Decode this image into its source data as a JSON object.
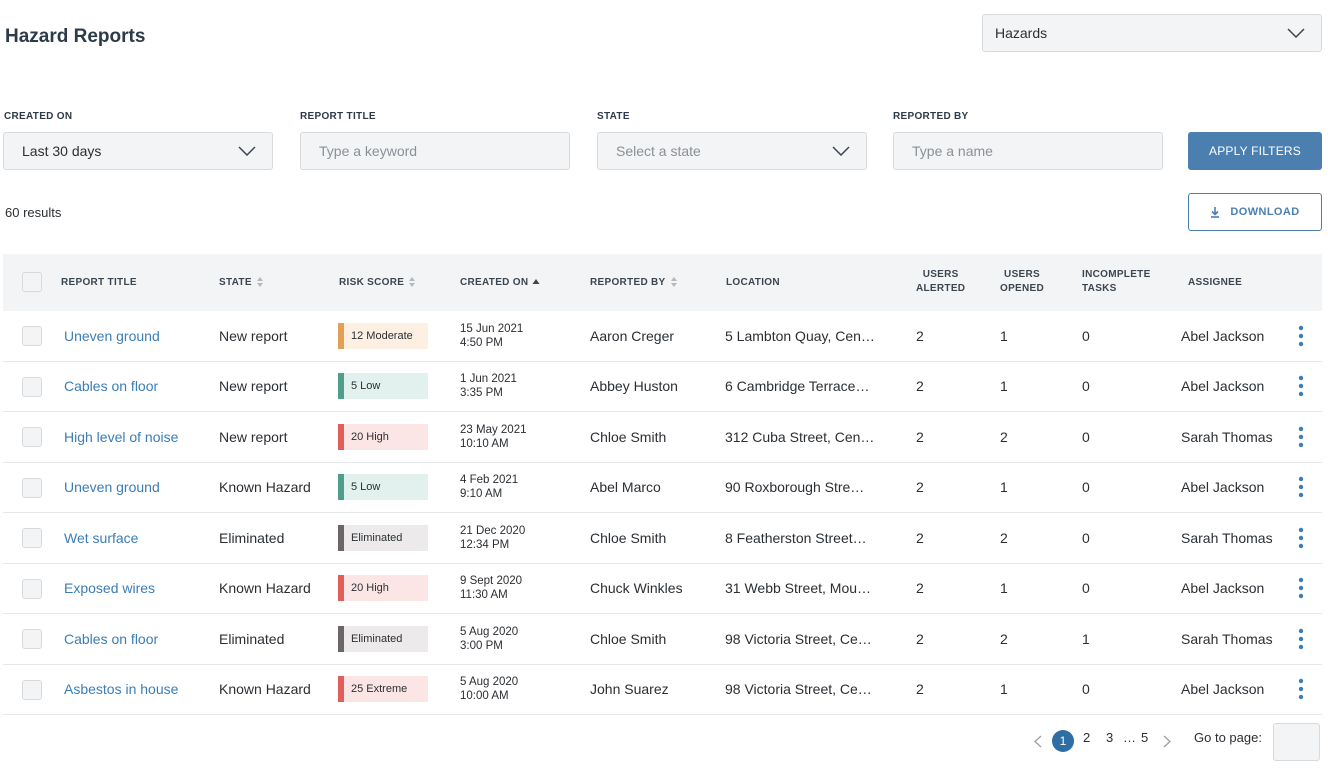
{
  "header": {
    "title": "Hazard Reports",
    "module_select": "Hazards"
  },
  "filters": {
    "created_on": {
      "label": "CREATED ON",
      "value": "Last 30 days"
    },
    "report_title": {
      "label": "REPORT TITLE",
      "placeholder": "Type a keyword"
    },
    "state": {
      "label": "STATE",
      "placeholder": "Select a state"
    },
    "reported_by": {
      "label": "REPORTED BY",
      "placeholder": "Type a name"
    },
    "apply_label": "APPLY FILTERS"
  },
  "results_text": "60 results",
  "download_label": "DOWNLOAD",
  "columns": {
    "report_title": "REPORT TITLE",
    "state": "STATE",
    "risk_score": "RISK SCORE",
    "created_on": "CREATED ON",
    "reported_by": "REPORTED BY",
    "location": "LOCATION",
    "users_alerted_1": "USERS",
    "users_alerted_2": "ALERTED",
    "users_opened_1": "USERS",
    "users_opened_2": "OPENED",
    "incomplete_tasks_1": "INCOMPLETE",
    "incomplete_tasks_2": "TASKS",
    "assignee": "ASSIGNEE"
  },
  "risk_colors": {
    "Moderate": {
      "bar": "#e3a054",
      "bg": "#fdf0e2"
    },
    "Low": {
      "bar": "#4f9e8c",
      "bg": "#e3f1ee"
    },
    "High": {
      "bar": "#e05f5b",
      "bg": "#fbe6e5"
    },
    "Extreme": {
      "bar": "#e05f5b",
      "bg": "#fbe6e5"
    },
    "Eliminated": {
      "bar": "#6d6666",
      "bg": "#eceaea"
    }
  },
  "rows": [
    {
      "title": "Uneven ground",
      "state": "New report",
      "risk": "12 Moderate",
      "risk_level": "Moderate",
      "date": "15 Jun 2021",
      "time": "4:50 PM",
      "reported_by": "Aaron Creger",
      "location": "5 Lambton Quay, Cen…",
      "alerted": "2",
      "opened": "1",
      "tasks": "0",
      "assignee": "Abel Jackson"
    },
    {
      "title": "Cables on floor",
      "state": "New report",
      "risk": "5 Low",
      "risk_level": "Low",
      "date": "1 Jun 2021",
      "time": "3:35 PM",
      "reported_by": "Abbey Huston",
      "location": "6 Cambridge Terrace…",
      "alerted": "2",
      "opened": "1",
      "tasks": "0",
      "assignee": "Abel Jackson"
    },
    {
      "title": "High level of noise",
      "state": "New report",
      "risk": "20 High",
      "risk_level": "High",
      "date": "23 May 2021",
      "time": "10:10 AM",
      "reported_by": "Chloe Smith",
      "location": "312 Cuba Street, Cen…",
      "alerted": "2",
      "opened": "2",
      "tasks": "0",
      "assignee": "Sarah Thomas"
    },
    {
      "title": "Uneven ground",
      "state": "Known Hazard",
      "risk": "5 Low",
      "risk_level": "Low",
      "date": "4 Feb 2021",
      "time": "9:10 AM",
      "reported_by": "Abel Marco",
      "location": "90 Roxborough Stre…",
      "alerted": "2",
      "opened": "1",
      "tasks": "0",
      "assignee": "Abel Jackson"
    },
    {
      "title": "Wet surface",
      "state": "Eliminated",
      "risk": "Eliminated",
      "risk_level": "Eliminated",
      "date": "21 Dec 2020",
      "time": "12:34 PM",
      "reported_by": "Chloe Smith",
      "location": "8 Featherston Street…",
      "alerted": "2",
      "opened": "2",
      "tasks": "0",
      "assignee": "Sarah Thomas"
    },
    {
      "title": "Exposed wires",
      "state": "Known Hazard",
      "risk": "20 High",
      "risk_level": "High",
      "date": "9 Sept 2020",
      "time": "11:30 AM",
      "reported_by": "Chuck Winkles",
      "location": "31 Webb Street, Mou…",
      "alerted": "2",
      "opened": "1",
      "tasks": "0",
      "assignee": "Abel Jackson"
    },
    {
      "title": "Cables on floor",
      "state": "Eliminated",
      "risk": "Eliminated",
      "risk_level": "Eliminated",
      "date": "5 Aug 2020",
      "time": "3:00 PM",
      "reported_by": "Chloe Smith",
      "location": "98 Victoria Street, Ce…",
      "alerted": "2",
      "opened": "2",
      "tasks": "1",
      "assignee": "Sarah Thomas"
    },
    {
      "title": "Asbestos in house",
      "state": "Known Hazard",
      "risk": "25 Extreme",
      "risk_level": "Extreme",
      "date": "5 Aug 2020",
      "time": "10:00 AM",
      "reported_by": "John Suarez",
      "location": "98 Victoria Street, Ce…",
      "alerted": "2",
      "opened": "1",
      "tasks": "0",
      "assignee": "Abel Jackson"
    }
  ],
  "pagination": {
    "current": "1",
    "page_2": "2",
    "page_3": "3",
    "ellipsis": "…",
    "last": "5",
    "goto_label": "Go to page:"
  }
}
